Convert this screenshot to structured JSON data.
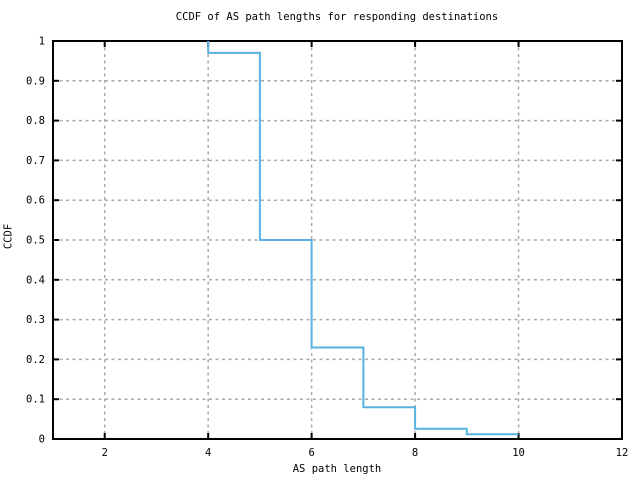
{
  "chart_data": {
    "type": "line",
    "style": "step",
    "title": "CCDF of AS path lengths for responding destinations",
    "xlabel": "AS path length",
    "ylabel": "CCDF",
    "xlim": [
      1,
      12
    ],
    "ylim": [
      0,
      1
    ],
    "x_ticks": [
      2,
      4,
      6,
      8,
      10,
      12
    ],
    "x_tick_labels": [
      "2",
      "4",
      "6",
      "8",
      "10",
      "12"
    ],
    "y_ticks": [
      0,
      0.1,
      0.2,
      0.3,
      0.4,
      0.5,
      0.6,
      0.7,
      0.8,
      0.9,
      1
    ],
    "y_tick_labels": [
      "0",
      "0.1",
      "0.2",
      "0.3",
      "0.4",
      "0.5",
      "0.6",
      "0.7",
      "0.8",
      "0.9",
      "1"
    ],
    "grid": true,
    "legend": "none",
    "line_color": "#58b2e2",
    "grid_color": "#aaaaaa",
    "axis_color": "#000000",
    "series": [
      {
        "name": "CCDF",
        "points": [
          [
            4,
            1
          ],
          [
            4,
            0.97
          ],
          [
            5,
            0.97
          ],
          [
            5,
            0.5
          ],
          [
            6,
            0.5
          ],
          [
            6,
            0.23
          ],
          [
            7,
            0.23
          ],
          [
            7,
            0.08
          ],
          [
            8,
            0.08
          ],
          [
            8,
            0.026
          ],
          [
            9,
            0.026
          ],
          [
            9,
            0.012
          ],
          [
            10,
            0.012
          ]
        ]
      }
    ]
  }
}
